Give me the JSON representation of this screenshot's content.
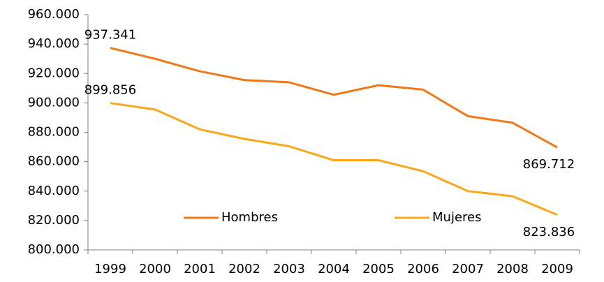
{
  "chart_data": {
    "type": "line",
    "categories": [
      "1999",
      "2000",
      "2001",
      "2002",
      "2003",
      "2004",
      "2005",
      "2006",
      "2007",
      "2008",
      "2009"
    ],
    "series": [
      {
        "name": "Hombres",
        "color": "#f07818",
        "values": [
          937341,
          930000,
          921500,
          915500,
          914000,
          905500,
          912000,
          909000,
          891000,
          886500,
          869712
        ],
        "value_labels": [
          "937.341",
          null,
          null,
          null,
          null,
          null,
          null,
          null,
          null,
          null,
          "869.712"
        ]
      },
      {
        "name": "Mujeres",
        "color": "#f8a818",
        "values": [
          899856,
          895500,
          882000,
          875500,
          870500,
          861000,
          861000,
          853500,
          840000,
          836500,
          823836
        ],
        "value_labels": [
          "899.856",
          null,
          null,
          null,
          null,
          null,
          null,
          null,
          null,
          null,
          "823.836"
        ]
      }
    ],
    "ylim": [
      800000,
      960000
    ],
    "yticks": [
      {
        "value": 800000,
        "label": "800.000"
      },
      {
        "value": 820000,
        "label": "820.000"
      },
      {
        "value": 840000,
        "label": "840.000"
      },
      {
        "value": 860000,
        "label": "860.000"
      },
      {
        "value": 880000,
        "label": "880.000"
      },
      {
        "value": 900000,
        "label": "900.000"
      },
      {
        "value": 920000,
        "label": "920.000"
      },
      {
        "value": 940000,
        "label": "940.000"
      },
      {
        "value": 960000,
        "label": "960.000"
      }
    ],
    "grid": false,
    "legend": "bottom"
  }
}
